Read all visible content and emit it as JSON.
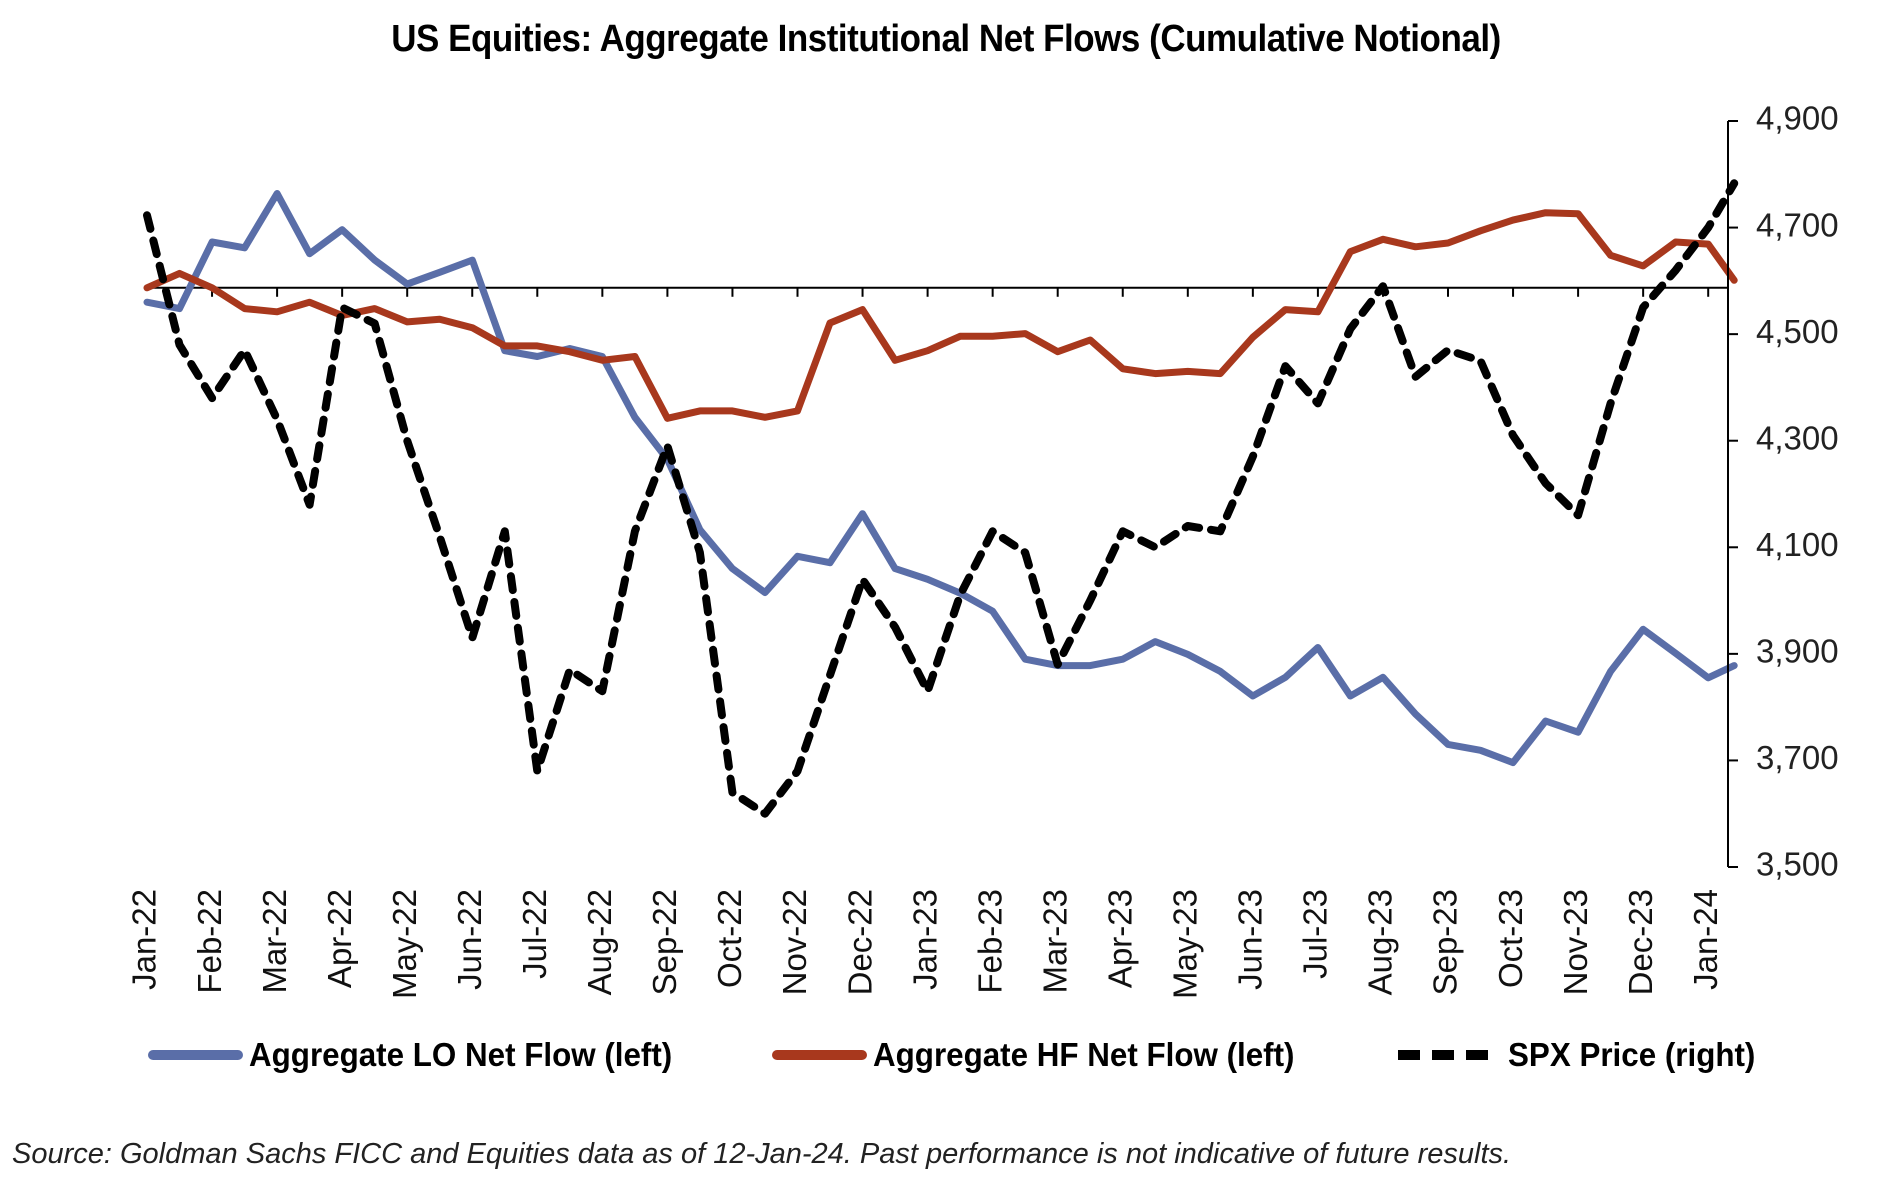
{
  "chart_data": {
    "type": "line",
    "title": "US Equities: Aggregate Institutional Net Flows (Cumulative Notional)",
    "xlabel": "",
    "ylabel_left": "",
    "ylabel_right": "",
    "left_axis_note": "Left axis unlabeled; LO/HF values are relative to the horizontal zero line, expressed in right-axis-equivalent units",
    "right_axis": {
      "ylim": [
        3500,
        4900
      ],
      "ticks": [
        3500,
        3700,
        3900,
        4100,
        4300,
        4500,
        4700,
        4900
      ],
      "tick_labels": [
        "3,500",
        "3,700",
        "3,900",
        "4,100",
        "4,300",
        "4,500",
        "4,700",
        "4,900"
      ]
    },
    "zero_line_right_equiv": 4587,
    "x_tick_labels": [
      "Jan-22",
      "Feb-22",
      "Mar-22",
      "Apr-22",
      "May-22",
      "Jun-22",
      "Jul-22",
      "Aug-22",
      "Sep-22",
      "Oct-22",
      "Nov-22",
      "Dec-22",
      "Jan-23",
      "Feb-23",
      "Mar-23",
      "Apr-23",
      "May-23",
      "Jun-23",
      "Jul-23",
      "Aug-23",
      "Sep-23",
      "Oct-23",
      "Nov-23",
      "Dec-23",
      "Jan-24"
    ],
    "x_months": [
      0,
      0.5,
      1,
      1.5,
      2,
      2.5,
      3,
      3.5,
      4,
      4.5,
      5,
      5.5,
      6,
      6.5,
      7,
      7.5,
      8,
      8.5,
      9,
      9.5,
      10,
      10.5,
      11,
      11.5,
      12,
      12.5,
      13,
      13.5,
      14,
      14.5,
      15,
      15.5,
      16,
      16.5,
      17,
      17.5,
      18,
      18.5,
      19,
      19.5,
      20,
      20.5,
      21,
      21.5,
      22,
      22.5,
      23,
      23.5,
      24,
      24.4
    ],
    "grid": false,
    "legend_position": "bottom",
    "series": [
      {
        "name": "Aggregate LO Net Flow (left)",
        "axis": "left",
        "style": "solid",
        "color": "#5a6ea8",
        "values": [
          -27,
          -39,
          86,
          75,
          177,
          64,
          109,
          52,
          7,
          29,
          52,
          -118,
          -129,
          -114,
          -129,
          -243,
          -322,
          -454,
          -527,
          -572,
          -504,
          -516,
          -424,
          -527,
          -547,
          -573,
          -607,
          -697,
          -709,
          -709,
          -697,
          -664,
          -688,
          -720,
          -766,
          -731,
          -675,
          -766,
          -731,
          -800,
          -857,
          -868,
          -891,
          -813,
          -834,
          -720,
          -641,
          -686,
          -732,
          -709
        ]
      },
      {
        "name": "Aggregate HF Net Flow (left)",
        "axis": "left",
        "style": "solid",
        "color": "#a8381d",
        "values": [
          0,
          27,
          0,
          -39,
          -45,
          -27,
          -52,
          -39,
          -64,
          -59,
          -75,
          -109,
          -109,
          -120,
          -136,
          -129,
          -245,
          -231,
          -231,
          -243,
          -231,
          -66,
          -41,
          -136,
          -118,
          -91,
          -91,
          -86,
          -120,
          -98,
          -152,
          -161,
          -157,
          -161,
          -93,
          -41,
          -45,
          68,
          91,
          77,
          84,
          107,
          127,
          141,
          139,
          61,
          41,
          86,
          82,
          14
        ]
      },
      {
        "name": "SPX Price (right)",
        "axis": "right",
        "style": "dashed",
        "color": "#000000",
        "values": [
          4723,
          4480,
          4380,
          4470,
          4340,
          4180,
          4550,
          4520,
          4300,
          4120,
          3930,
          4130,
          3680,
          3870,
          3830,
          4130,
          4290,
          4090,
          3640,
          3600,
          3680,
          3860,
          4040,
          3950,
          3830,
          4010,
          4130,
          4090,
          3880,
          4000,
          4130,
          4100,
          4140,
          4130,
          4270,
          4440,
          4370,
          4510,
          4590,
          4420,
          4470,
          4450,
          4310,
          4220,
          4160,
          4370,
          4550,
          4620,
          4700,
          4783
        ]
      }
    ]
  },
  "legend": {
    "items": [
      {
        "label": "Aggregate LO Net Flow (left)"
      },
      {
        "label": "Aggregate HF Net Flow (left)"
      },
      {
        "label": "SPX Price (right)"
      }
    ]
  },
  "source_note": "Source: Goldman Sachs FICC and Equities data as of 12-Jan-24. Past performance is not indicative of future results."
}
